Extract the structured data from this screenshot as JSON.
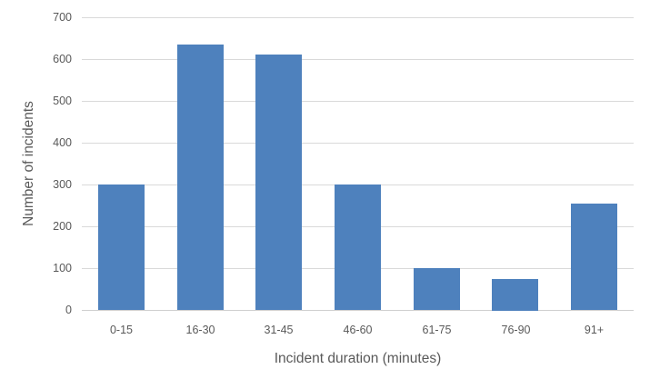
{
  "chart_data": {
    "type": "bar",
    "title": "",
    "categories": [
      "0-15",
      "16-30",
      "31-45",
      "46-60",
      "61-75",
      "76-90",
      "91+"
    ],
    "values": [
      300,
      635,
      610,
      300,
      100,
      75,
      255
    ],
    "xlabel": "Incident duration (minutes)",
    "ylabel": "Number of incidents",
    "ylim": [
      0,
      700
    ],
    "y_ticks": [
      0,
      100,
      200,
      300,
      400,
      500,
      600,
      700
    ],
    "grid": "horizontal",
    "legend": "none",
    "colors": {
      "bar_fill": "#4e81bd",
      "gridline": "#d9d9d9",
      "axis_line": "#cfcfcf",
      "text": "#595959",
      "background": "#ffffff"
    }
  }
}
